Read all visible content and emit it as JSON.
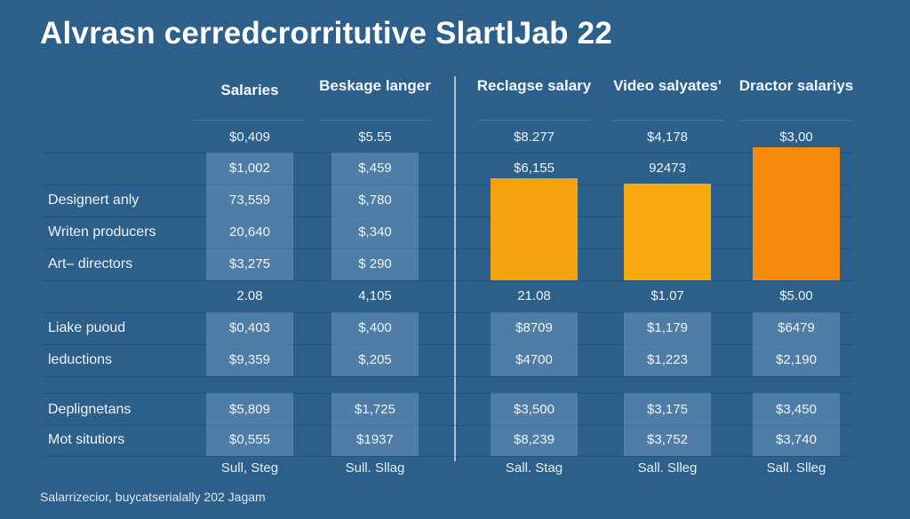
{
  "title": "Alvrasn cerredcrorritutive SlartlJab 22",
  "caption": "Salarrizecior, buycatserialally 202 Jagam",
  "colors": {
    "background": "#2c5f8a",
    "bar_1": "#f5a40f",
    "bar_2": "#f7a90f",
    "bar_3": "#f68a0c",
    "cell_box": "#4d7ea6"
  },
  "chart_data": {
    "type": "table",
    "title": "Alvrasn cerredcrorritutive SlartlJab 22",
    "columns": [
      "Salaries",
      "Beskage langer",
      "Reclagse salary",
      "Video salyates'",
      "Dractor salariys"
    ],
    "row_labels": [
      "",
      "",
      "Designert anly",
      "Writen producers",
      "Art– directors",
      "",
      "Liake puoud",
      "leductions",
      "Deplignetans",
      "Mot situtiors"
    ],
    "rows": [
      [
        "$0,409",
        "$5.55",
        "$8.277",
        "$4,178",
        "$3,00"
      ],
      [
        "$1,002",
        "$,459",
        "$6,155",
        "92473",
        ""
      ],
      [
        "73,559",
        "$,780",
        "",
        "",
        ""
      ],
      [
        "20,640",
        "$,340",
        "",
        "",
        ""
      ],
      [
        "$3,275",
        "$ 290",
        "",
        "",
        ""
      ],
      [
        "2.08",
        "4,105",
        "21.08",
        "$1.07",
        "$5.00"
      ],
      [
        "$0,403",
        "$,400",
        "$8709",
        "$1,179",
        "$6479"
      ],
      [
        "$9,359",
        "$,205",
        "$4700",
        "$1,223",
        "$2,190"
      ],
      [
        "$5,809",
        "$1,725",
        "$3,500",
        "$3,175",
        "$3,450"
      ],
      [
        "$0,555",
        "$1937",
        "$8,239",
        "$3,752",
        "$3,740"
      ]
    ],
    "footers": [
      "Sull, Steg",
      "Sull. Sllag",
      "Sall. Stag",
      "Sall. Slleg",
      "Sall. Slleg"
    ],
    "bars": [
      {
        "column": "Reclagse salary",
        "relative_height": 0.77
      },
      {
        "column": "Video salyates'",
        "relative_height": 0.73
      },
      {
        "column": "Dractor salariys",
        "relative_height": 1.0
      }
    ]
  }
}
